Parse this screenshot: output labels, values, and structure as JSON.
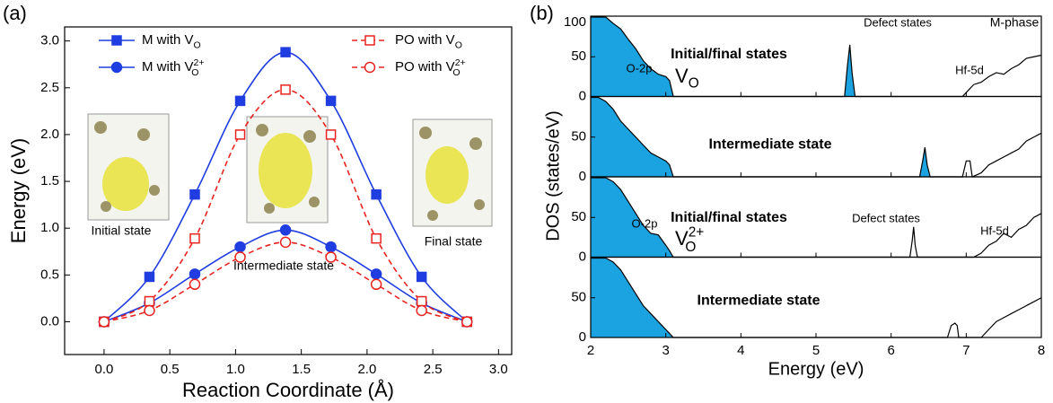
{
  "chart_data": [
    {
      "type": "line",
      "panel_label": "(a)",
      "x_label": "Reaction Coordinate (Å)",
      "y_label": "Energy (eV)",
      "x": [
        0,
        0.345,
        0.69,
        1.035,
        1.38,
        1.725,
        2.07,
        2.415,
        2.76
      ],
      "series": [
        {
          "name": "M with V",
          "sub": "O",
          "color": "#1f3de0",
          "marker": "square",
          "filled": true,
          "dashed": false,
          "values": [
            0,
            0.48,
            1.36,
            2.36,
            2.88,
            2.36,
            1.36,
            0.48,
            0
          ]
        },
        {
          "name": "M with V",
          "sub": "O",
          "sup": "2+",
          "color": "#1f3de0",
          "marker": "circle",
          "filled": true,
          "dashed": false,
          "values": [
            0,
            0.2,
            0.51,
            0.8,
            0.98,
            0.8,
            0.51,
            0.2,
            0
          ]
        },
        {
          "name": "PO with V",
          "sub": "O",
          "color": "#e8231f",
          "marker": "square",
          "filled": false,
          "dashed": true,
          "values": [
            0,
            0.22,
            0.89,
            2.0,
            2.48,
            2.0,
            0.89,
            0.22,
            0
          ]
        },
        {
          "name": "PO with V",
          "sub": "O",
          "sup": "2+",
          "color": "#e8231f",
          "marker": "circle",
          "filled": false,
          "dashed": true,
          "values": [
            0,
            0.12,
            0.4,
            0.69,
            0.85,
            0.69,
            0.4,
            0.12,
            0
          ]
        }
      ],
      "xlim": [
        -0.3,
        3.1
      ],
      "xticks": [
        {
          "value": 0,
          "label": "0.0"
        },
        {
          "value": 0.5,
          "label": "0.5"
        },
        {
          "value": 1,
          "label": "1.0"
        },
        {
          "value": 1.5,
          "label": "1.5"
        },
        {
          "value": 2,
          "label": "2.0"
        },
        {
          "value": 2.5,
          "label": "2.5"
        },
        {
          "value": 3,
          "label": "3.0"
        }
      ],
      "ylim": [
        -0.35,
        3.15
      ],
      "yticks": [
        {
          "value": 0,
          "label": "0.0"
        },
        {
          "value": 0.5,
          "label": "0.5"
        },
        {
          "value": 1,
          "label": "1.0"
        },
        {
          "value": 1.5,
          "label": "1.5"
        },
        {
          "value": 2,
          "label": "2.0"
        },
        {
          "value": 2.5,
          "label": "2.5"
        },
        {
          "value": 3,
          "label": "3.0"
        }
      ],
      "annotations": [
        "Initial state",
        "Intermediate state",
        "Final state"
      ]
    },
    {
      "type": "dos",
      "panel_label": "(b)",
      "y_label": "DOS (states/eV)",
      "fill_color": "#1aa3e0",
      "x": [
        2,
        2.1,
        2.2,
        2.3,
        2.4,
        2.5,
        2.6,
        2.7,
        2.8,
        2.9,
        3.0,
        3.05,
        3.1,
        5.38,
        5.42,
        5.45,
        5.48,
        5.52,
        6.95,
        7.0,
        7.1,
        7.2,
        7.3,
        7.4,
        7.5,
        7.6,
        7.7,
        7.8,
        7.9,
        8.0
      ],
      "values": [
        100,
        100,
        100,
        92,
        85,
        72,
        60,
        45,
        35,
        28,
        25,
        20,
        0,
        0,
        40,
        65,
        30,
        0,
        0,
        5,
        15,
        18,
        25,
        30,
        28,
        35,
        40,
        48,
        50,
        52
      ],
      "fill_ranges": [
        [
          2,
          3.1
        ],
        [
          5.38,
          5.52
        ]
      ],
      "xlim": [
        2,
        8
      ],
      "xticks": [
        2,
        3,
        4,
        5,
        6,
        7,
        8
      ],
      "ylim": [
        0,
        100
      ],
      "yticks": [
        0,
        50,
        100
      ],
      "annotations": [
        "Initial/final states",
        "Defect states",
        "M-phase",
        "O-2p",
        "Hf-5d"
      ],
      "vacancy_label": {
        "text": "V",
        "sub": "O",
        "color": "#1f3de0"
      }
    },
    {
      "type": "dos",
      "fill_color": "#1aa3e0",
      "x": [
        2,
        2.1,
        2.2,
        2.3,
        2.4,
        2.5,
        2.6,
        2.7,
        2.8,
        2.9,
        3.0,
        3.05,
        3.1,
        6.38,
        6.42,
        6.45,
        6.48,
        6.52,
        6.95,
        7.0,
        7.05,
        7.08,
        7.2,
        7.3,
        7.4,
        7.5,
        7.6,
        7.7,
        7.8,
        7.9,
        8.0
      ],
      "values": [
        100,
        100,
        95,
        85,
        70,
        60,
        50,
        40,
        30,
        25,
        20,
        15,
        0,
        0,
        20,
        37,
        15,
        0,
        0,
        20,
        20,
        0,
        5,
        15,
        20,
        25,
        30,
        35,
        45,
        50,
        55
      ],
      "fill_ranges": [
        [
          2,
          3.1
        ],
        [
          6.38,
          6.52
        ]
      ],
      "xlim": [
        2,
        8
      ],
      "xticks": [
        2,
        3,
        4,
        5,
        6,
        7,
        8
      ],
      "ylim": [
        0,
        100
      ],
      "yticks": [
        0,
        50
      ],
      "annotations": [
        "Intermediate state"
      ]
    },
    {
      "type": "dos",
      "fill_color": "#1aa3e0",
      "x": [
        2,
        2.1,
        2.2,
        2.3,
        2.4,
        2.5,
        2.6,
        2.7,
        2.8,
        2.9,
        3.0,
        3.05,
        3.1,
        6.25,
        6.28,
        6.3,
        6.32,
        6.35,
        7.1,
        7.2,
        7.3,
        7.4,
        7.5,
        7.6,
        7.7,
        7.8,
        7.9,
        8.0
      ],
      "values": [
        100,
        100,
        100,
        95,
        85,
        70,
        55,
        40,
        30,
        28,
        15,
        8,
        0,
        0,
        20,
        38,
        15,
        0,
        0,
        5,
        15,
        20,
        30,
        25,
        35,
        40,
        50,
        55
      ],
      "fill_ranges": [
        [
          2,
          3.1
        ]
      ],
      "xlim": [
        2,
        8
      ],
      "xticks": [
        2,
        3,
        4,
        5,
        6,
        7,
        8
      ],
      "ylim": [
        0,
        100
      ],
      "yticks": [
        0,
        50
      ],
      "annotations": [
        "Initial/final states",
        "Defect states",
        "O-2p",
        "Hf-5d"
      ],
      "vacancy_label": {
        "text": "V",
        "sub": "O",
        "sup": "2+",
        "color": "#e8231f"
      }
    },
    {
      "type": "dos",
      "x_label": "Energy (eV)",
      "fill_color": "#1aa3e0",
      "x": [
        2,
        2.1,
        2.2,
        2.3,
        2.4,
        2.5,
        2.6,
        2.7,
        2.8,
        2.9,
        3.0,
        3.05,
        3.1,
        6.75,
        6.8,
        6.85,
        6.88,
        6.9,
        7.2,
        7.3,
        7.4,
        7.5,
        7.6,
        7.7,
        7.8,
        7.9,
        8.0
      ],
      "values": [
        100,
        100,
        100,
        95,
        85,
        70,
        55,
        40,
        30,
        20,
        10,
        5,
        0,
        0,
        15,
        18,
        15,
        0,
        0,
        10,
        20,
        25,
        30,
        35,
        40,
        45,
        50
      ],
      "fill_ranges": [
        [
          2,
          3.1
        ]
      ],
      "xlim": [
        2,
        8
      ],
      "xticks": [
        2,
        3,
        4,
        5,
        6,
        7,
        8
      ],
      "ylim": [
        0,
        100
      ],
      "yticks": [
        0,
        50
      ],
      "annotations": [
        "Intermediate state"
      ]
    }
  ]
}
